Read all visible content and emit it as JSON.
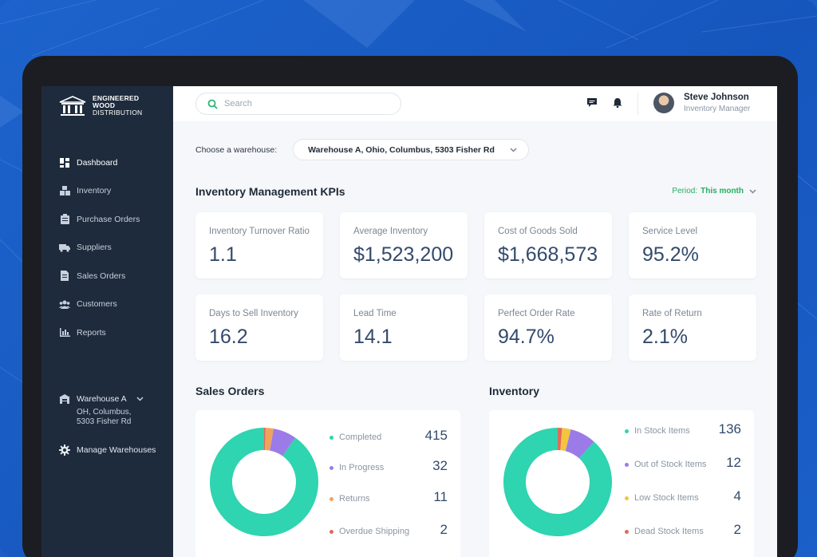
{
  "brand": {
    "line1": "ENGINEERED",
    "line2": "WOOD",
    "line3": "DISTRIBUTION"
  },
  "sidebar": {
    "items": [
      {
        "label": "Dashboard",
        "icon": "dashboard-icon"
      },
      {
        "label": "Inventory",
        "icon": "boxes-icon"
      },
      {
        "label": "Purchase Orders",
        "icon": "clipboard-icon"
      },
      {
        "label": "Suppliers",
        "icon": "truck-icon"
      },
      {
        "label": "Sales Orders",
        "icon": "document-icon"
      },
      {
        "label": "Customers",
        "icon": "users-icon"
      },
      {
        "label": "Reports",
        "icon": "bar-chart-icon"
      }
    ],
    "warehouse": {
      "name": "Warehouse A",
      "address_line1": "OH, Columbus,",
      "address_line2": "5303 Fisher Rd"
    },
    "manage_label": "Manage Warehouses"
  },
  "topbar": {
    "search_placeholder": "Search",
    "user": {
      "name": "Steve Johnson",
      "role": "Inventory Manager"
    }
  },
  "main": {
    "choose_label": "Choose a warehouse:",
    "selected_warehouse": "Warehouse A, Ohio, Columbus, 5303 Fisher Rd",
    "kpi_title": "Inventory Management KPIs",
    "period_label": "Period:",
    "period_value": "This month",
    "kpis": [
      {
        "label": "Inventory Turnover Ratio",
        "value": "1.1"
      },
      {
        "label": "Average Inventory",
        "value": "$1,523,200"
      },
      {
        "label": "Cost of Goods Sold",
        "value": "$1,668,573"
      },
      {
        "label": "Service Level",
        "value": "95.2%"
      },
      {
        "label": "Days to Sell Inventory",
        "value": "16.2"
      },
      {
        "label": "Lead Time",
        "value": "14.1"
      },
      {
        "label": "Perfect Order Rate",
        "value": "94.7%"
      },
      {
        "label": "Rate of Return",
        "value": "2.1%"
      }
    ],
    "sales_orders": {
      "title": "Sales Orders",
      "items": [
        {
          "label": "Completed",
          "value": "415",
          "color": "#2fd4b0"
        },
        {
          "label": "In Progress",
          "value": "32",
          "color": "#9b7be8"
        },
        {
          "label": "Returns",
          "value": "11",
          "color": "#f0a35e"
        },
        {
          "label": "Overdue Shipping",
          "value": "2",
          "color": "#e06a5a"
        }
      ]
    },
    "inventory": {
      "title": "Inventory",
      "items": [
        {
          "label": "In Stock Items",
          "value": "136",
          "color": "#2fd4b0"
        },
        {
          "label": "Out of Stock Items",
          "value": "12",
          "color": "#9b7be8"
        },
        {
          "label": "Low Stock Items",
          "value": "4",
          "color": "#f2c53d"
        },
        {
          "label": "Dead Stock Items",
          "value": "2",
          "color": "#e06a5a"
        }
      ]
    }
  },
  "colors": {
    "accent": "#2fd4b0",
    "sidebar_bg": "#1e2b3c",
    "period_green": "#27ae60",
    "background_blue": "#1a5fc7"
  }
}
